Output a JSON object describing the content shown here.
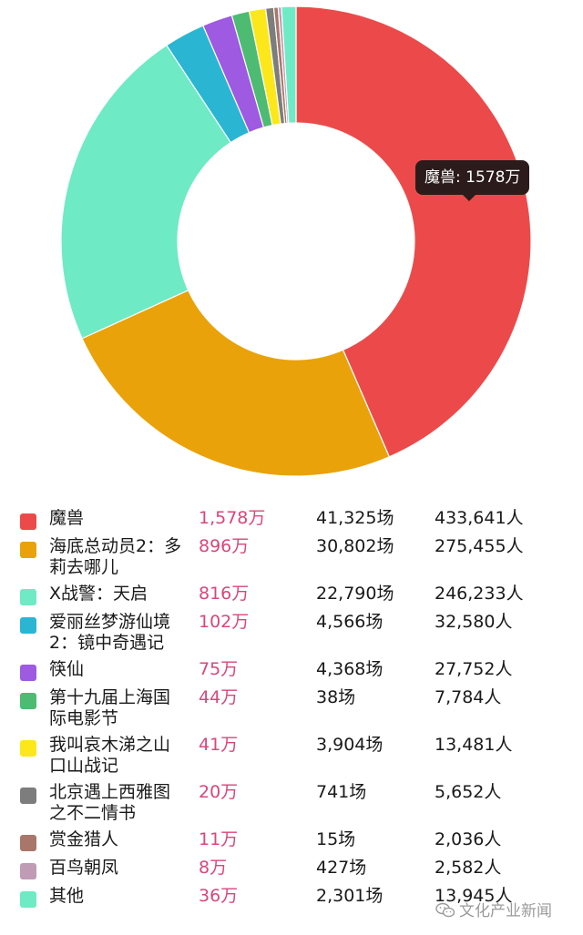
{
  "colors": {
    "tooltip_bg": "#2b1b1b",
    "box_office_text": "#d9467b",
    "watermark_text": "#9a9a9a"
  },
  "tooltip": {
    "text": "魔兽: 1578万"
  },
  "watermark": {
    "text": "文化产业新闻",
    "icon": "wechat-icon"
  },
  "chart_data": {
    "type": "pie",
    "style": "donut",
    "unit": "万",
    "series": [
      {
        "name": "魔兽",
        "value": 1578,
        "color": "#ec4a4a"
      },
      {
        "name": "海底总动员2：多莉去哪儿",
        "value": 896,
        "color": "#eaa20a"
      },
      {
        "name": "X战警：天启",
        "value": 816,
        "color": "#6eeac4"
      },
      {
        "name": "爱丽丝梦游仙境2：镜中奇遇记",
        "value": 102,
        "color": "#2ab6d2"
      },
      {
        "name": "筷仙",
        "value": 75,
        "color": "#9e5ae0"
      },
      {
        "name": "第十九届上海国际电影节",
        "value": 44,
        "color": "#4dbb72"
      },
      {
        "name": "我叫哀木涕之山口山战记",
        "value": 41,
        "color": "#fce81a"
      },
      {
        "name": "北京遇上西雅图之不二情书",
        "value": 20,
        "color": "#7d7d7d"
      },
      {
        "name": "赏金猎人",
        "value": 11,
        "color": "#a8776a"
      },
      {
        "name": "百鸟朝凤",
        "value": 8,
        "color": "#bf9bb6"
      },
      {
        "name": "其他",
        "value": 36,
        "color": "#6eeac4"
      }
    ]
  },
  "legend": {
    "rows": [
      {
        "name": "魔兽",
        "box": "1,578万",
        "shows": "41,325场",
        "people": "433,641人"
      },
      {
        "name": "海底总动员2：多莉去哪儿",
        "box": "896万",
        "shows": "30,802场",
        "people": "275,455人"
      },
      {
        "name": "X战警：天启",
        "box": "816万",
        "shows": "22,790场",
        "people": "246,233人"
      },
      {
        "name": "爱丽丝梦游仙境2：镜中奇遇记",
        "box": "102万",
        "shows": "4,566场",
        "people": "32,580人"
      },
      {
        "name": "筷仙",
        "box": "75万",
        "shows": "4,368场",
        "people": "27,752人"
      },
      {
        "name": "第十九届上海国际电影节",
        "box": "44万",
        "shows": "38场",
        "people": "7,784人"
      },
      {
        "name": "我叫哀木涕之山口山战记",
        "box": "41万",
        "shows": "3,904场",
        "people": "13,481人"
      },
      {
        "name": "北京遇上西雅图之不二情书",
        "box": "20万",
        "shows": "741场",
        "people": "5,652人"
      },
      {
        "name": "赏金猎人",
        "box": "11万",
        "shows": "15场",
        "people": "2,036人"
      },
      {
        "name": "百鸟朝凤",
        "box": "8万",
        "shows": "427场",
        "people": "2,582人"
      },
      {
        "name": "其他",
        "box": "36万",
        "shows": "2,301场",
        "people": "13,945人"
      }
    ]
  }
}
